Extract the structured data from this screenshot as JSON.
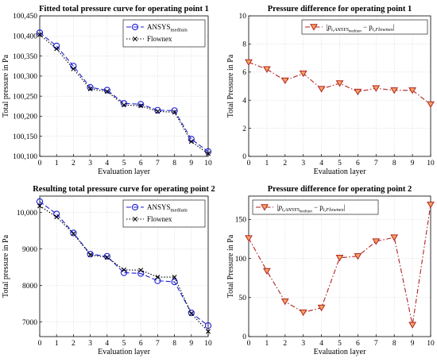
{
  "chart_data": [
    {
      "type": "line",
      "title": "Fitted total pressure curve for operating point 1",
      "xlabel": "Evaluation layer",
      "ylabel": "Total pressure in Pa",
      "x": [
        0,
        1,
        2,
        3,
        4,
        5,
        6,
        7,
        8,
        9,
        10
      ],
      "xlim": [
        0,
        10
      ],
      "ylim": [
        100100,
        100450
      ],
      "yticks": [
        100100,
        100150,
        100200,
        100250,
        100300,
        100350,
        100400,
        100450
      ],
      "ytick_labels": [
        "100,100",
        "100,150",
        "100,200",
        "100,250",
        "100,300",
        "100,350",
        "100,400",
        "100,450"
      ],
      "legend_position": "top-right",
      "grid": true,
      "series": [
        {
          "name": "ANSYS",
          "subscript": "medium",
          "color": "#1f1fd6",
          "style": "dash-circle",
          "values": [
            100408,
            100375,
            100325,
            100272,
            100265,
            100232,
            100230,
            100215,
            100214,
            100143,
            100112
          ]
        },
        {
          "name": "Flownex",
          "subscript": "",
          "color": "#000000",
          "style": "dot-x",
          "values": [
            100403,
            100368,
            100318,
            100268,
            100262,
            100228,
            100226,
            100212,
            100210,
            100137,
            100107
          ]
        }
      ]
    },
    {
      "type": "line",
      "title": "Pressure difference for operating point 1",
      "xlabel": "Evaluation layer",
      "ylabel": "Total Pressure in Pa",
      "x": [
        0,
        1,
        2,
        3,
        4,
        5,
        6,
        7,
        8,
        9,
        10
      ],
      "xlim": [
        0,
        10
      ],
      "ylim": [
        0,
        10
      ],
      "yticks": [
        0,
        2,
        4,
        6,
        8,
        10
      ],
      "ytick_labels": [
        "0",
        "2",
        "4",
        "6",
        "8",
        "10"
      ],
      "legend_position": "top-right",
      "grid": true,
      "series": [
        {
          "name": "|p",
          "name_sub": "t,ANSYS",
          "name_subsub": "medium",
          "name_mid": " − p",
          "name_sub2": "t,Flownex",
          "name_end": "|",
          "color": "#b22222",
          "marker_fill": "#f4a460",
          "style": "dashdot-triangle",
          "values": [
            6.7,
            6.2,
            5.4,
            5.9,
            4.8,
            5.2,
            4.6,
            4.85,
            4.7,
            4.7,
            3.7
          ]
        }
      ]
    },
    {
      "type": "line",
      "title": "Resulting total pressure curve for operating point 2",
      "xlabel": "Evaluation layer",
      "ylabel": "Total pressure in Pa",
      "x": [
        0,
        1,
        2,
        3,
        4,
        5,
        6,
        7,
        8,
        9,
        10
      ],
      "xlim": [
        0,
        10
      ],
      "ylim": [
        6600,
        10450
      ],
      "yticks": [
        7000,
        8000,
        9000,
        10000
      ],
      "ytick_labels": [
        "7000",
        "8000",
        "9000",
        "10,000"
      ],
      "legend_position": "top-right",
      "grid": true,
      "series": [
        {
          "name": "ANSYS",
          "subscript": "medium",
          "color": "#1f1fd6",
          "style": "dash-circle",
          "values": [
            10300,
            9960,
            9440,
            8860,
            8800,
            8350,
            8330,
            8130,
            8100,
            7250,
            6900
          ]
        },
        {
          "name": "Flownex",
          "subscript": "",
          "color": "#000000",
          "style": "dot-x",
          "values": [
            10180,
            9880,
            9420,
            8840,
            8770,
            8430,
            8420,
            8230,
            8230,
            7230,
            6740
          ]
        }
      ]
    },
    {
      "type": "line",
      "title": "Pressure difference for operating point 2",
      "xlabel": "Evaluation layer",
      "ylabel": "Total Pressure in Pa",
      "x": [
        0,
        1,
        2,
        3,
        4,
        5,
        6,
        7,
        8,
        9,
        10
      ],
      "xlim": [
        0,
        10
      ],
      "ylim": [
        0,
        180
      ],
      "yticks": [
        0,
        50,
        100,
        150
      ],
      "ytick_labels": [
        "0",
        "50",
        "100",
        "150"
      ],
      "legend_position": "top-left",
      "grid": true,
      "series": [
        {
          "name": "|p",
          "name_sub": "t,ANSYS",
          "name_subsub": "medium",
          "name_mid": " − p",
          "name_sub2": "t,Flownex",
          "name_end": "|",
          "color": "#b22222",
          "marker_fill": "#f4a460",
          "style": "dashdot-triangle",
          "values": [
            126,
            84,
            45,
            31,
            37,
            101,
            103,
            122,
            127,
            15,
            169
          ]
        }
      ]
    }
  ]
}
